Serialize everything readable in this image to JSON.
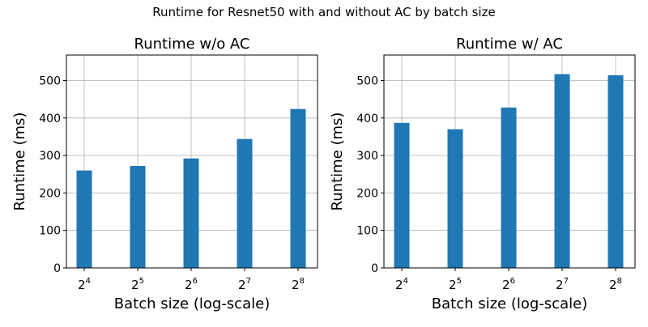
{
  "figure": {
    "suptitle": "Runtime for Resnet50 with and without AC by batch size"
  },
  "style": {
    "bar_color": "#1f77b4",
    "grid_color": "#b0b0b0",
    "axis_color": "#000000"
  },
  "chart_data": [
    {
      "type": "bar",
      "title": "Runtime w/o AC",
      "xlabel": "Batch size (log-scale)",
      "ylabel": "Runtime (ms)",
      "categories": [
        "2^4",
        "2^5",
        "2^6",
        "2^7",
        "2^8"
      ],
      "tick_base": "2",
      "tick_exponents": [
        "4",
        "5",
        "6",
        "7",
        "8"
      ],
      "values": [
        260,
        272,
        292,
        344,
        424
      ],
      "ylim": [
        0,
        568
      ],
      "yticks": [
        0,
        100,
        200,
        300,
        400,
        500
      ],
      "grid": true,
      "legend": "none"
    },
    {
      "type": "bar",
      "title": "Runtime w/ AC",
      "xlabel": "Batch size (log-scale)",
      "ylabel": "Runtime (ms)",
      "categories": [
        "2^4",
        "2^5",
        "2^6",
        "2^7",
        "2^8"
      ],
      "tick_base": "2",
      "tick_exponents": [
        "4",
        "5",
        "6",
        "7",
        "8"
      ],
      "values": [
        387,
        370,
        428,
        517,
        514
      ],
      "ylim": [
        0,
        568
      ],
      "yticks": [
        0,
        100,
        200,
        300,
        400,
        500
      ],
      "grid": true,
      "legend": "none"
    }
  ]
}
